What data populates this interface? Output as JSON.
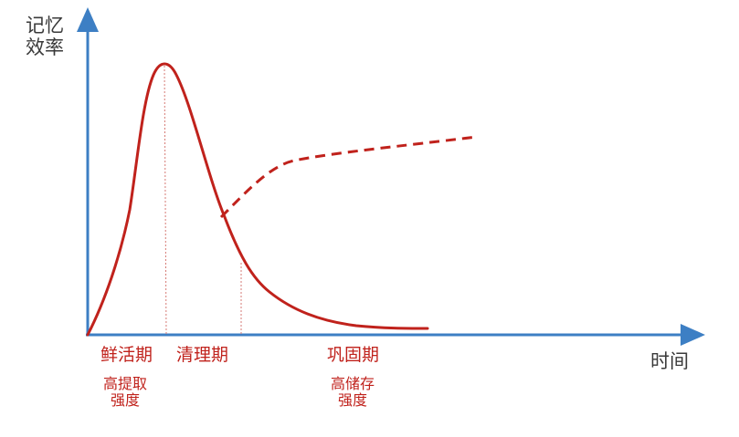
{
  "diagram": {
    "y_axis_title_line1": "记忆",
    "y_axis_title_line2": "效率",
    "x_axis_title": "时间",
    "phases": [
      {
        "label": "鲜活期",
        "desc_line1": "高提取",
        "desc_line2": "强度"
      },
      {
        "label": "清理期"
      },
      {
        "label": "巩固期",
        "desc_line1": "高储存",
        "desc_line2": "强度"
      }
    ],
    "colors": {
      "axis": "#3d7fc4",
      "curve": "#c0221c",
      "text": "#3a3a3a"
    }
  }
}
